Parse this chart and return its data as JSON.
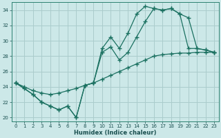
{
  "title": "",
  "xlabel": "Humidex (Indice chaleur)",
  "bg_color": "#cce8e8",
  "grid_color": "#aacccc",
  "line_color": "#1a7060",
  "xlim": [
    -0.5,
    23.5
  ],
  "ylim": [
    19.5,
    35.0
  ],
  "xticks": [
    0,
    1,
    2,
    3,
    4,
    5,
    6,
    7,
    8,
    9,
    10,
    11,
    12,
    13,
    14,
    15,
    16,
    17,
    18,
    19,
    20,
    21,
    22,
    23
  ],
  "yticks": [
    20,
    22,
    24,
    26,
    28,
    30,
    32,
    34
  ],
  "line1_x": [
    0,
    1,
    2,
    3,
    4,
    5,
    6,
    7,
    8,
    9,
    10,
    11,
    12,
    13,
    14,
    15,
    16,
    17,
    18,
    19,
    20,
    21,
    22,
    23
  ],
  "line1_y": [
    24.5,
    23.8,
    23.0,
    22.0,
    21.5,
    21.0,
    21.5,
    20.0,
    24.2,
    24.5,
    29.0,
    30.5,
    29.0,
    31.0,
    33.5,
    34.5,
    34.2,
    34.0,
    34.2,
    33.5,
    29.0,
    29.0,
    28.8,
    28.5
  ],
  "line2_x": [
    0,
    2,
    3,
    4,
    5,
    6,
    7,
    8,
    9,
    10,
    11,
    12,
    13,
    14,
    15,
    16,
    17,
    18,
    19,
    20,
    21,
    22,
    23
  ],
  "line2_y": [
    24.5,
    23.0,
    22.0,
    21.5,
    21.0,
    21.5,
    20.0,
    24.2,
    24.5,
    28.5,
    29.2,
    27.5,
    28.5,
    30.5,
    32.5,
    34.2,
    34.0,
    34.2,
    33.5,
    33.0,
    29.0,
    28.8,
    28.5
  ],
  "line3_x": [
    0,
    1,
    2,
    3,
    4,
    5,
    6,
    7,
    8,
    9,
    10,
    11,
    12,
    13,
    14,
    15,
    16,
    17,
    18,
    19,
    20,
    21,
    22,
    23
  ],
  "line3_y": [
    24.5,
    24.0,
    23.5,
    23.2,
    23.0,
    23.2,
    23.5,
    23.8,
    24.2,
    24.5,
    25.0,
    25.5,
    26.0,
    26.5,
    27.0,
    27.5,
    28.0,
    28.2,
    28.3,
    28.4,
    28.4,
    28.5,
    28.5,
    28.5
  ]
}
